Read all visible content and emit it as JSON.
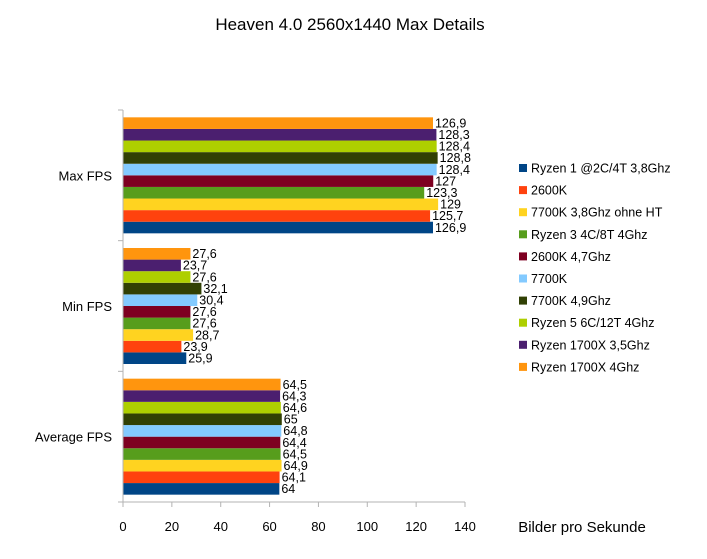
{
  "chart_data": {
    "type": "bar",
    "orientation": "horizontal",
    "title": "Heaven 4.0 2560x1440 Max Details",
    "xlabel": "Bilder pro Sekunde",
    "ylabel": "",
    "xlim": [
      0,
      140
    ],
    "xticks": [
      0,
      20,
      40,
      60,
      80,
      100,
      120,
      140
    ],
    "categories": [
      "Max FPS",
      "Min FPS",
      "Average FPS"
    ],
    "legend_position": "right",
    "grid": false,
    "series": [
      {
        "name": "Ryzen 1 @2C/4T 3,8Ghz",
        "color": "#004586",
        "values": [
          126.9,
          25.9,
          64
        ],
        "labels": [
          "126,9",
          "25,9",
          "64"
        ]
      },
      {
        "name": "2600K",
        "color": "#ff420e",
        "values": [
          125.7,
          23.9,
          64.1
        ],
        "labels": [
          "125,7",
          "23,9",
          "64,1"
        ]
      },
      {
        "name": "7700K 3,8Ghz ohne HT",
        "color": "#ffd320",
        "values": [
          129,
          28.7,
          64.9
        ],
        "labels": [
          "129",
          "28,7",
          "64,9"
        ]
      },
      {
        "name": "Ryzen 3 4C/8T 4Ghz",
        "color": "#579d1c",
        "values": [
          123.3,
          27.6,
          64.5
        ],
        "labels": [
          "123,3",
          "27,6",
          "64,5"
        ]
      },
      {
        "name": "2600K 4,7Ghz",
        "color": "#7e0021",
        "values": [
          127,
          27.6,
          64.4
        ],
        "labels": [
          "127",
          "27,6",
          "64,4"
        ]
      },
      {
        "name": "7700K",
        "color": "#83caff",
        "values": [
          128.4,
          30.4,
          64.8
        ],
        "labels": [
          "128,4",
          "30,4",
          "64,8"
        ]
      },
      {
        "name": "7700K 4,9Ghz",
        "color": "#314004",
        "values": [
          128.8,
          32.1,
          65
        ],
        "labels": [
          "128,8",
          "32,1",
          "65"
        ]
      },
      {
        "name": "Ryzen 5 6C/12T 4Ghz",
        "color": "#aecf00",
        "values": [
          128.4,
          27.6,
          64.6
        ],
        "labels": [
          "128,4",
          "27,6",
          "64,6"
        ]
      },
      {
        "name": "Ryzen 1700X 3,5Ghz",
        "color": "#4b1f6f",
        "values": [
          128.3,
          23.7,
          64.3
        ],
        "labels": [
          "128,3",
          "23,7",
          "64,3"
        ]
      },
      {
        "name": "Ryzen 1700X 4Ghz",
        "color": "#ff950e",
        "values": [
          126.9,
          27.6,
          64.5
        ],
        "labels": [
          "126,9",
          "27,6",
          "64,5"
        ]
      }
    ]
  }
}
